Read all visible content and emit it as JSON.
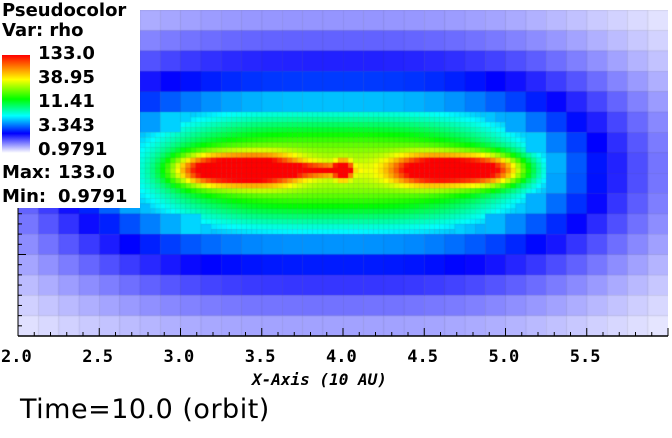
{
  "legend": {
    "plot_type": "Pseudocolor",
    "variable": "Var: rho",
    "max_label": "Max:",
    "max_value": "133.0",
    "min_label": "Min:",
    "min_value": "0.9791",
    "colorbar_ticks": [
      "133.0",
      "38.95",
      "11.41",
      "3.343",
      "0.9791"
    ],
    "colormap": [
      "#ffffff",
      "#0000ff",
      "#00ffff",
      "#00ff00",
      "#ffff00",
      "#ff0000"
    ],
    "scale": "log"
  },
  "x_axis": {
    "title": "X-Axis (10 AU)",
    "tick_labels": [
      "2.0",
      "2.5",
      "3.0",
      "3.5",
      "4.0",
      "4.5",
      "5.0",
      "5.5"
    ],
    "range": [
      2.0,
      6.0
    ]
  },
  "annotation": {
    "time_text": "Time=10.0 (orbit)"
  },
  "chart_data": {
    "type": "heatmap",
    "title": "Pseudocolor",
    "variable": "rho",
    "colorbar_min": 0.9791,
    "colorbar_max": 133.0,
    "xlabel": "X-Axis (10 AU)",
    "xlim": [
      2.0,
      6.0
    ],
    "features": [
      {
        "name": "left lobe",
        "x_center": 3.35,
        "rho": 133.0
      },
      {
        "name": "central core",
        "x_center": 4.0,
        "rho": 133.0
      },
      {
        "name": "right lobe",
        "x_center": 4.7,
        "rho": 133.0
      }
    ]
  }
}
